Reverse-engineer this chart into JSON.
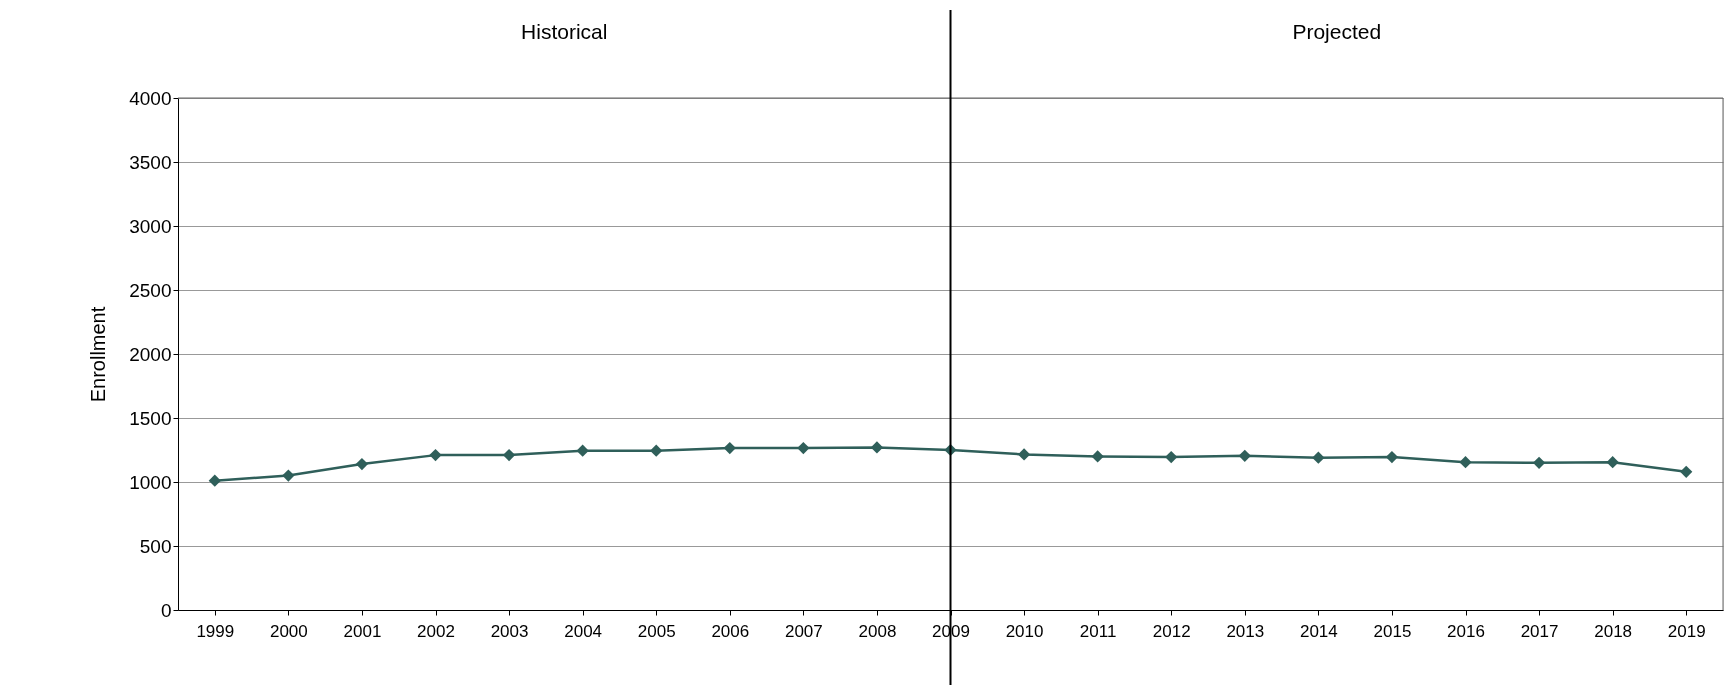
{
  "chart_data": {
    "type": "line",
    "ylabel": "Enrollment",
    "categories": [
      "1999",
      "2000",
      "2001",
      "2002",
      "2003",
      "2004",
      "2005",
      "2006",
      "2007",
      "2008",
      "2009",
      "2010",
      "2011",
      "2012",
      "2013",
      "2014",
      "2015",
      "2016",
      "2017",
      "2018",
      "2019"
    ],
    "series": [
      {
        "color": "#2f5f5a",
        "values": [
          1010,
          1050,
          1140,
          1210,
          1210,
          1245,
          1245,
          1265,
          1265,
          1270,
          1250,
          1215,
          1200,
          1195,
          1205,
          1190,
          1195,
          1155,
          1150,
          1155,
          1080
        ]
      }
    ],
    "ylim": [
      0,
      4000
    ],
    "yticks": [
      0,
      500,
      1000,
      1500,
      2000,
      2500,
      3000,
      3500,
      4000
    ],
    "grid": "y",
    "marker": "diamond",
    "line_style": "solid",
    "ref_lines": [
      {
        "axis": "x",
        "value": "2009",
        "color": "#000000"
      }
    ],
    "annotations": [
      "Historical",
      "Projected"
    ]
  }
}
